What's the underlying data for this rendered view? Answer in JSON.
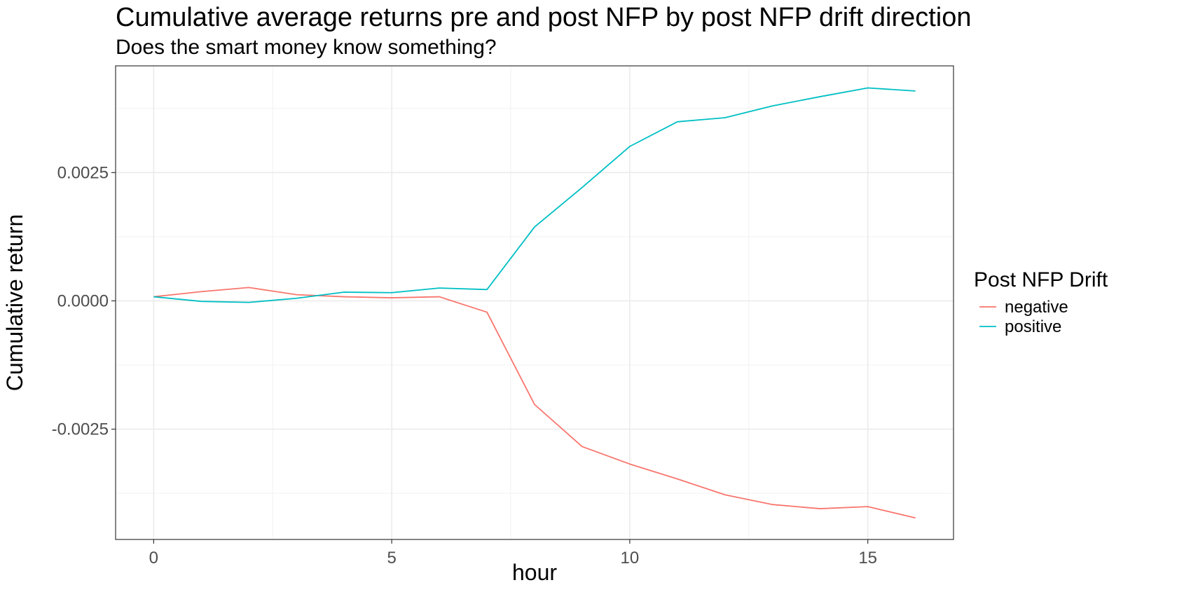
{
  "chart_data": {
    "type": "line",
    "title": "Cumulative average returns pre and post NFP by post NFP drift direction",
    "subtitle": "Does the smart money know something?",
    "xlabel": "hour",
    "ylabel": "Cumulative return",
    "xlim": [
      -0.8,
      16.8
    ],
    "ylim": [
      -0.00465,
      0.00458
    ],
    "x_ticks": [
      0,
      5,
      10,
      15
    ],
    "x_tick_labels": [
      "0",
      "5",
      "10",
      "15"
    ],
    "y_ticks": [
      -0.0025,
      0.0,
      0.0025
    ],
    "y_tick_labels": [
      "-0.0025",
      "0.0000",
      "0.0025"
    ],
    "grid": true,
    "legend": {
      "title": "Post NFP Drift",
      "position": "right"
    },
    "x": [
      0,
      1,
      2,
      3,
      4,
      5,
      6,
      7,
      8,
      9,
      10,
      11,
      12,
      13,
      14,
      15,
      16
    ],
    "series": [
      {
        "name": "negative",
        "color": "#F8766D",
        "values": [
          8e-05,
          0.00018,
          0.00026,
          0.00012,
          8e-05,
          6e-05,
          8e-05,
          -0.00022,
          -0.00202,
          -0.00284,
          -0.00318,
          -0.00347,
          -0.00378,
          -0.00397,
          -0.00405,
          -0.00401,
          -0.00423
        ]
      },
      {
        "name": "positive",
        "color": "#00BFC4",
        "values": [
          8e-05,
          -1e-05,
          -3e-05,
          5e-05,
          0.00017,
          0.00016,
          0.00025,
          0.00022,
          0.00144,
          0.00221,
          0.00301,
          0.00349,
          0.00357,
          0.0038,
          0.00398,
          0.00415,
          0.00409
        ]
      }
    ]
  }
}
